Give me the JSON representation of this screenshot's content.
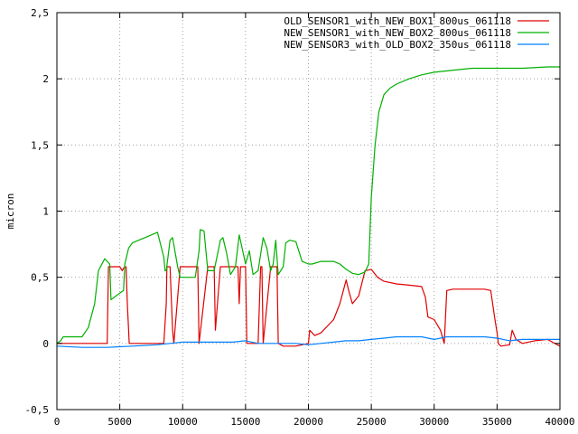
{
  "chart_data": {
    "type": "line",
    "title": "",
    "xlabel": "",
    "ylabel": "micron",
    "xlim": [
      0,
      40000
    ],
    "ylim": [
      -0.5,
      2.5
    ],
    "grid": true,
    "legend_position": "top-right",
    "x_ticks": [
      "0",
      "5000",
      "10000",
      "15000",
      "20000",
      "25000",
      "30000",
      "35000",
      "40000"
    ],
    "y_ticks": [
      "-0,5",
      "0",
      "0,5",
      "1",
      "1,5",
      "2",
      "2,5"
    ],
    "x_tick_values": [
      0,
      5000,
      10000,
      15000,
      20000,
      25000,
      30000,
      35000,
      40000
    ],
    "y_tick_values": [
      -0.5,
      0,
      0.5,
      1,
      1.5,
      2,
      2.5
    ],
    "series": [
      {
        "name": "OLD_SENSOR1_with_NEW_BOX1_800us_061118",
        "color": "#e00000",
        "x": [
          0,
          4000,
          4100,
          4200,
          5000,
          5200,
          5300,
          5500,
          5600,
          5700,
          5750,
          6000,
          8500,
          8700,
          8750,
          8900,
          9000,
          9200,
          9300,
          9800,
          9900,
          10000,
          10200,
          11000,
          11200,
          11300,
          12000,
          12100,
          12500,
          12600,
          13000,
          13100,
          13400,
          14000,
          14400,
          14500,
          14600,
          14700,
          15000,
          15100,
          16000,
          16200,
          16300,
          16400,
          17000,
          17100,
          17500,
          17600,
          18000,
          19000,
          20000,
          20100,
          20500,
          21000,
          22000,
          22500,
          23000,
          23200,
          23500,
          24000,
          24500,
          25000,
          25500,
          26000,
          27000,
          28000,
          29000,
          29300,
          29500,
          30000,
          30500,
          30800,
          31000,
          31500,
          32000,
          33000,
          34000,
          34500,
          34800,
          35000,
          35100,
          35300,
          36000,
          36200,
          36500,
          37000,
          38000,
          39000,
          40000
        ],
        "y": [
          0,
          0,
          0.58,
          0.58,
          0.58,
          0.55,
          0.57,
          0.58,
          0.3,
          0.1,
          0,
          0,
          0,
          0.3,
          0.58,
          0.58,
          0.58,
          0.1,
          0,
          0.58,
          0.58,
          0.58,
          0.58,
          0.58,
          0.58,
          0,
          0.58,
          0.58,
          0.58,
          0.1,
          0.58,
          0.58,
          0.58,
          0.58,
          0.58,
          0.3,
          0.58,
          0.58,
          0.58,
          0,
          0,
          0.58,
          0.58,
          0,
          0.58,
          0.58,
          0.58,
          0,
          -0.02,
          -0.02,
          0,
          0.1,
          0.06,
          0.08,
          0.18,
          0.3,
          0.48,
          0.4,
          0.3,
          0.36,
          0.55,
          0.56,
          0.5,
          0.47,
          0.45,
          0.44,
          0.43,
          0.35,
          0.2,
          0.18,
          0.1,
          0,
          0.4,
          0.41,
          0.41,
          0.41,
          0.41,
          0.4,
          0.2,
          0.08,
          0,
          -0.02,
          -0.01,
          0.1,
          0.03,
          0,
          0.02,
          0.03,
          -0.02
        ]
      },
      {
        "name": "NEW_SENSOR1_with_NEW_BOX2_800us_061118",
        "color": "#00b000",
        "x": [
          0,
          300,
          500,
          2000,
          2500,
          3000,
          3300,
          3800,
          4200,
          4300,
          5000,
          5300,
          5400,
          5700,
          6000,
          7000,
          8000,
          8500,
          8600,
          8700,
          9000,
          9200,
          9600,
          9800,
          10000,
          11000,
          11300,
          11400,
          11700,
          12000,
          12500,
          13000,
          13200,
          13500,
          13800,
          14200,
          14500,
          15000,
          15300,
          15600,
          16000,
          16400,
          16700,
          17000,
          17200,
          17400,
          17600,
          18000,
          18200,
          18500,
          19000,
          19500,
          20000,
          20300,
          21000,
          22000,
          22500,
          23000,
          23500,
          24000,
          24500,
          24800,
          25000,
          25300,
          25600,
          26000,
          26500,
          27000,
          28000,
          29000,
          30000,
          31000,
          33000,
          35000,
          37000,
          39000,
          40000
        ],
        "y": [
          0,
          0.02,
          0.05,
          0.05,
          0.12,
          0.3,
          0.55,
          0.64,
          0.6,
          0.33,
          0.38,
          0.4,
          0.6,
          0.72,
          0.76,
          0.8,
          0.84,
          0.65,
          0.55,
          0.55,
          0.78,
          0.8,
          0.58,
          0.5,
          0.5,
          0.5,
          0.7,
          0.86,
          0.85,
          0.55,
          0.55,
          0.78,
          0.8,
          0.68,
          0.52,
          0.58,
          0.82,
          0.6,
          0.7,
          0.52,
          0.55,
          0.8,
          0.72,
          0.55,
          0.6,
          0.78,
          0.52,
          0.58,
          0.76,
          0.78,
          0.77,
          0.62,
          0.6,
          0.6,
          0.62,
          0.62,
          0.6,
          0.56,
          0.53,
          0.52,
          0.54,
          0.6,
          1.1,
          1.5,
          1.75,
          1.88,
          1.93,
          1.96,
          2.0,
          2.03,
          2.05,
          2.06,
          2.08,
          2.08,
          2.08,
          2.09,
          2.09
        ]
      },
      {
        "name": "NEW_SENSOR3_with_OLD_BOX2_350us_061118",
        "color": "#0080ff",
        "x": [
          0,
          2000,
          4000,
          6000,
          8000,
          9000,
          10000,
          11000,
          12000,
          13000,
          14000,
          15000,
          16000,
          17000,
          18000,
          19000,
          20000,
          21000,
          22000,
          23000,
          24000,
          25000,
          26000,
          27000,
          28000,
          29000,
          30000,
          31000,
          32000,
          33000,
          34000,
          35000,
          36000,
          37000,
          38000,
          39000,
          40000
        ],
        "y": [
          -0.02,
          -0.03,
          -0.03,
          -0.02,
          -0.01,
          0,
          0.01,
          0.01,
          0.01,
          0.01,
          0.01,
          0.02,
          0.0,
          0.0,
          0.0,
          0.0,
          -0.01,
          0.0,
          0.01,
          0.02,
          0.02,
          0.03,
          0.04,
          0.05,
          0.05,
          0.05,
          0.03,
          0.05,
          0.05,
          0.05,
          0.05,
          0.04,
          0.02,
          0.03,
          0.03,
          0.03,
          0.03
        ]
      }
    ]
  }
}
